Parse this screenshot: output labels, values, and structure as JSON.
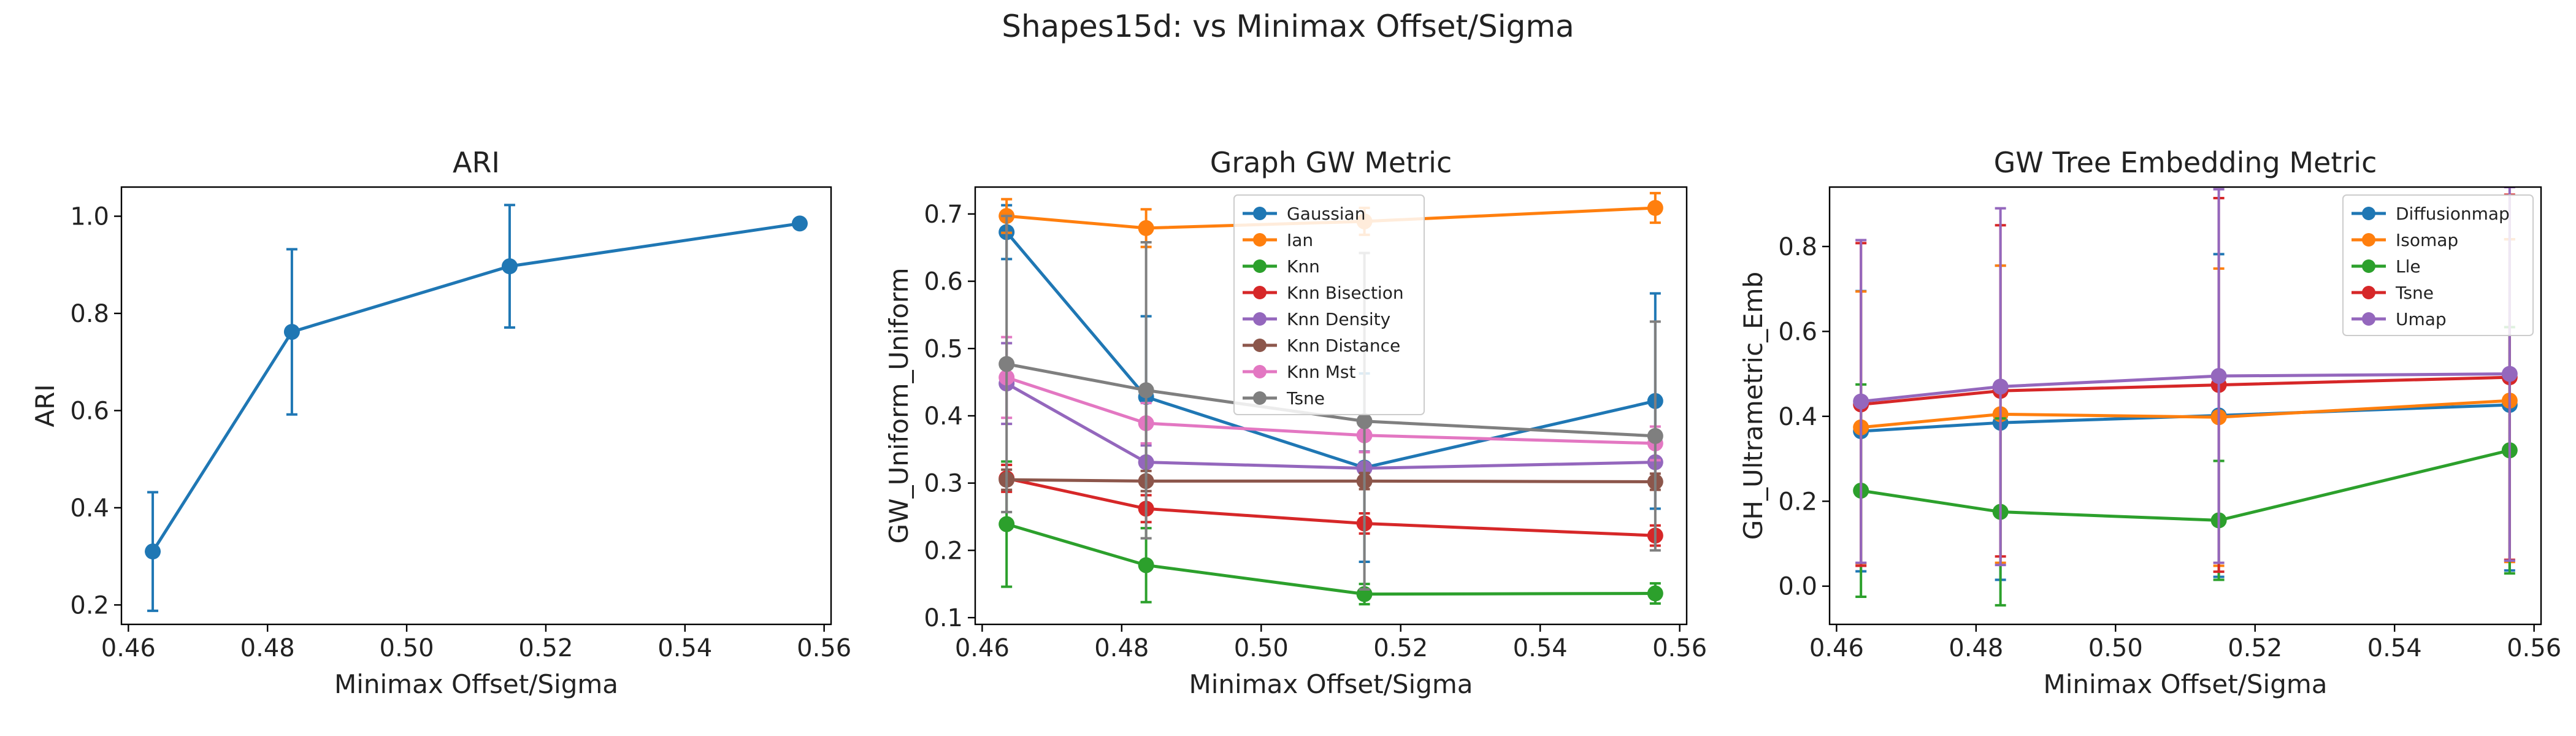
{
  "figure_title": "Shapes15d: vs Minimax Offset/Sigma",
  "chart_data": [
    {
      "type": "line",
      "title": "ARI",
      "xlabel": "Minimax Offset/Sigma",
      "ylabel": "ARI",
      "xlim": [
        0.459,
        0.561
      ],
      "ylim": [
        0.16,
        1.06
      ],
      "xticks": [
        0.46,
        0.48,
        0.5,
        0.52,
        0.54,
        0.56
      ],
      "xtick_labels": [
        "0.46",
        "0.48",
        "0.50",
        "0.52",
        "0.54",
        "0.56"
      ],
      "yticks": [
        0.2,
        0.4,
        0.6,
        0.8,
        1.0
      ],
      "ytick_labels": [
        "0.2",
        "0.4",
        "0.6",
        "0.8",
        "1.0"
      ],
      "legend": null,
      "x": [
        0.4635,
        0.4835,
        0.5148,
        0.5565
      ],
      "series": [
        {
          "name": "",
          "color": "#1f77b4",
          "values": [
            0.31,
            0.762,
            0.897,
            0.985
          ],
          "err": [
            0.122,
            0.17,
            0.126,
            0.0
          ]
        }
      ]
    },
    {
      "type": "line",
      "title": "Graph GW Metric",
      "xlabel": "Minimax Offset/Sigma",
      "ylabel": "GW_Uniform_Uniform",
      "xlim": [
        0.459,
        0.561
      ],
      "ylim": [
        0.09,
        0.74
      ],
      "xticks": [
        0.46,
        0.48,
        0.5,
        0.52,
        0.54,
        0.56
      ],
      "xtick_labels": [
        "0.46",
        "0.48",
        "0.50",
        "0.52",
        "0.54",
        "0.56"
      ],
      "yticks": [
        0.1,
        0.2,
        0.3,
        0.4,
        0.5,
        0.6,
        0.7
      ],
      "ytick_labels": [
        "0.1",
        "0.2",
        "0.3",
        "0.4",
        "0.5",
        "0.6",
        "0.7"
      ],
      "legend": "upper-center",
      "x": [
        0.4635,
        0.4835,
        0.5148,
        0.5565
      ],
      "series": [
        {
          "name": "Gaussian",
          "color": "#1f77b4",
          "values": [
            0.673,
            0.428,
            0.323,
            0.422
          ],
          "err": [
            0.04,
            0.12,
            0.14,
            0.16
          ]
        },
        {
          "name": "Ian",
          "color": "#ff7f0e",
          "values": [
            0.697,
            0.679,
            0.689,
            0.709
          ],
          "err": [
            0.025,
            0.028,
            0.02,
            0.022
          ]
        },
        {
          "name": "Knn",
          "color": "#2ca02c",
          "values": [
            0.239,
            0.178,
            0.135,
            0.136
          ],
          "err": [
            0.093,
            0.055,
            0.015,
            0.015
          ]
        },
        {
          "name": "Knn Bisection",
          "color": "#d62728",
          "values": [
            0.307,
            0.262,
            0.24,
            0.222
          ],
          "err": [
            0.02,
            0.02,
            0.015,
            0.015
          ]
        },
        {
          "name": "Knn Density",
          "color": "#9467bd",
          "values": [
            0.448,
            0.331,
            0.322,
            0.331
          ],
          "err": [
            0.06,
            0.025,
            0.025,
            0.025
          ]
        },
        {
          "name": "Knn Distance",
          "color": "#8c564b",
          "values": [
            0.305,
            0.303,
            0.303,
            0.302
          ],
          "err": [
            0.015,
            0.015,
            0.012,
            0.012
          ]
        },
        {
          "name": "Knn Mst",
          "color": "#e377c2",
          "values": [
            0.457,
            0.389,
            0.371,
            0.359
          ],
          "err": [
            0.06,
            0.03,
            0.025,
            0.025
          ]
        },
        {
          "name": "Tsne",
          "color": "#7f7f7f",
          "values": [
            0.477,
            0.438,
            0.392,
            0.37
          ],
          "err": [
            0.22,
            0.22,
            0.25,
            0.17
          ]
        }
      ]
    },
    {
      "type": "line",
      "title": "GW Tree Embedding Metric",
      "xlabel": "Minimax Offset/Sigma",
      "ylabel": "GH_Ultrametric_Emb",
      "xlim": [
        0.459,
        0.561
      ],
      "ylim": [
        -0.09,
        0.94
      ],
      "xticks": [
        0.46,
        0.48,
        0.5,
        0.52,
        0.54,
        0.56
      ],
      "xtick_labels": [
        "0.46",
        "0.48",
        "0.50",
        "0.52",
        "0.54",
        "0.56"
      ],
      "yticks": [
        0.0,
        0.2,
        0.4,
        0.6,
        0.8
      ],
      "ytick_labels": [
        "0.0",
        "0.2",
        "0.4",
        "0.6",
        "0.8"
      ],
      "legend": "upper-right",
      "x": [
        0.4635,
        0.4835,
        0.5148,
        0.5565
      ],
      "series": [
        {
          "name": "Diffusionmap",
          "color": "#1f77b4",
          "values": [
            0.365,
            0.385,
            0.402,
            0.427
          ],
          "err": [
            0.33,
            0.37,
            0.38,
            0.39
          ]
        },
        {
          "name": "Isomap",
          "color": "#ff7f0e",
          "values": [
            0.374,
            0.405,
            0.398,
            0.437
          ],
          "err": [
            0.32,
            0.35,
            0.35,
            0.38
          ]
        },
        {
          "name": "Lle",
          "color": "#2ca02c",
          "values": [
            0.225,
            0.175,
            0.155,
            0.32
          ],
          "err": [
            0.25,
            0.22,
            0.14,
            0.29
          ]
        },
        {
          "name": "Tsne",
          "color": "#d62728",
          "values": [
            0.428,
            0.46,
            0.474,
            0.492
          ],
          "err": [
            0.38,
            0.39,
            0.44,
            0.43
          ]
        },
        {
          "name": "Umap",
          "color": "#9467bd",
          "values": [
            0.435,
            0.47,
            0.495,
            0.5
          ],
          "err": [
            0.38,
            0.42,
            0.44,
            0.44
          ]
        }
      ]
    }
  ]
}
